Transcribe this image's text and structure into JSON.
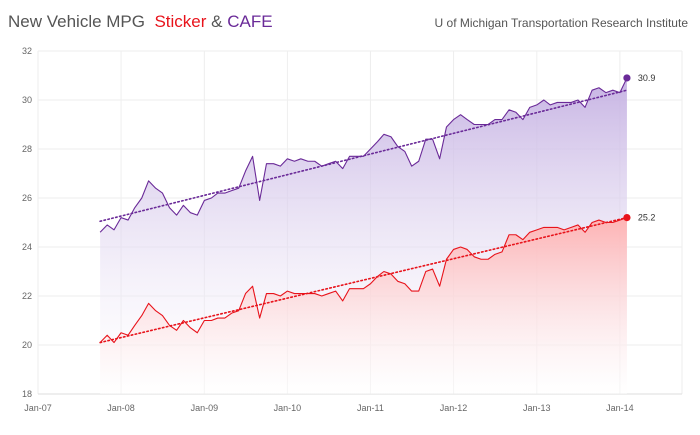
{
  "header": {
    "title_main": "New Vehicle MPG",
    "title_sticker": "Sticker",
    "title_amp": "&",
    "title_cafe": "CAFE",
    "source": "U of Michigan Transportation Research Institute"
  },
  "colors": {
    "sticker": "#e8131b",
    "cafe": "#6a2a98",
    "cafe_fill": "#c9b6e4",
    "sticker_fill": "#ffb7b7",
    "grid": "#eeeeee",
    "axis_text": "#666666"
  },
  "chart_data": {
    "type": "area",
    "title": "New Vehicle MPG Sticker & CAFE",
    "xlabel": "",
    "ylabel": "",
    "ylim": [
      18,
      32
    ],
    "yticks": [
      18,
      20,
      22,
      24,
      26,
      28,
      30,
      32
    ],
    "xlim": [
      "2007-01-01",
      "2014-10-01"
    ],
    "xticks": [
      "Jan-07",
      "Jan-08",
      "Jan-09",
      "Jan-10",
      "Jan-11",
      "Jan-12",
      "Jan-13",
      "Jan-14"
    ],
    "grid": true,
    "series": [
      {
        "name": "CAFE",
        "color": "#6a2a98",
        "end_label": "30.9",
        "trend": [
          [
            "2007-10-01",
            25.05
          ],
          [
            "2014-02-01",
            30.4
          ]
        ],
        "points": [
          [
            "2007-10-01",
            24.6
          ],
          [
            "2007-11-01",
            24.9
          ],
          [
            "2007-12-01",
            24.7
          ],
          [
            "2008-01-01",
            25.2
          ],
          [
            "2008-02-01",
            25.1
          ],
          [
            "2008-03-01",
            25.6
          ],
          [
            "2008-04-01",
            26.0
          ],
          [
            "2008-05-01",
            26.7
          ],
          [
            "2008-06-01",
            26.4
          ],
          [
            "2008-07-01",
            26.2
          ],
          [
            "2008-08-01",
            25.6
          ],
          [
            "2008-09-01",
            25.3
          ],
          [
            "2008-10-01",
            25.7
          ],
          [
            "2008-11-01",
            25.4
          ],
          [
            "2008-12-01",
            25.3
          ],
          [
            "2009-01-01",
            25.9
          ],
          [
            "2009-02-01",
            26.0
          ],
          [
            "2009-03-01",
            26.2
          ],
          [
            "2009-04-01",
            26.2
          ],
          [
            "2009-05-01",
            26.3
          ],
          [
            "2009-06-01",
            26.4
          ],
          [
            "2009-07-01",
            27.1
          ],
          [
            "2009-08-01",
            27.7
          ],
          [
            "2009-09-01",
            25.9
          ],
          [
            "2009-10-01",
            27.4
          ],
          [
            "2009-11-01",
            27.4
          ],
          [
            "2009-12-01",
            27.3
          ],
          [
            "2010-01-01",
            27.6
          ],
          [
            "2010-02-01",
            27.5
          ],
          [
            "2010-03-01",
            27.6
          ],
          [
            "2010-04-01",
            27.5
          ],
          [
            "2010-05-01",
            27.5
          ],
          [
            "2010-06-01",
            27.3
          ],
          [
            "2010-07-01",
            27.4
          ],
          [
            "2010-08-01",
            27.5
          ],
          [
            "2010-09-01",
            27.2
          ],
          [
            "2010-10-01",
            27.7
          ],
          [
            "2010-11-01",
            27.7
          ],
          [
            "2010-12-01",
            27.7
          ],
          [
            "2011-01-01",
            28.0
          ],
          [
            "2011-02-01",
            28.3
          ],
          [
            "2011-03-01",
            28.6
          ],
          [
            "2011-04-01",
            28.5
          ],
          [
            "2011-05-01",
            28.1
          ],
          [
            "2011-06-01",
            27.9
          ],
          [
            "2011-07-01",
            27.3
          ],
          [
            "2011-08-01",
            27.5
          ],
          [
            "2011-09-01",
            28.4
          ],
          [
            "2011-10-01",
            28.4
          ],
          [
            "2011-11-01",
            27.6
          ],
          [
            "2011-12-01",
            28.9
          ],
          [
            "2012-01-01",
            29.2
          ],
          [
            "2012-02-01",
            29.4
          ],
          [
            "2012-03-01",
            29.2
          ],
          [
            "2012-04-01",
            29.0
          ],
          [
            "2012-05-01",
            29.0
          ],
          [
            "2012-06-01",
            29.0
          ],
          [
            "2012-07-01",
            29.2
          ],
          [
            "2012-08-01",
            29.2
          ],
          [
            "2012-09-01",
            29.6
          ],
          [
            "2012-10-01",
            29.5
          ],
          [
            "2012-11-01",
            29.2
          ],
          [
            "2012-12-01",
            29.7
          ],
          [
            "2013-01-01",
            29.8
          ],
          [
            "2013-02-01",
            30.0
          ],
          [
            "2013-03-01",
            29.8
          ],
          [
            "2013-04-01",
            29.9
          ],
          [
            "2013-05-01",
            29.9
          ],
          [
            "2013-06-01",
            29.9
          ],
          [
            "2013-07-01",
            30.0
          ],
          [
            "2013-08-01",
            29.7
          ],
          [
            "2013-09-01",
            30.4
          ],
          [
            "2013-10-01",
            30.5
          ],
          [
            "2013-11-01",
            30.3
          ],
          [
            "2013-12-01",
            30.4
          ],
          [
            "2014-01-01",
            30.3
          ],
          [
            "2014-02-01",
            30.9
          ]
        ]
      },
      {
        "name": "Sticker",
        "color": "#e8131b",
        "end_label": "25.2",
        "trend": [
          [
            "2007-10-01",
            20.1
          ],
          [
            "2014-02-01",
            25.2
          ]
        ],
        "points": [
          [
            "2007-10-01",
            20.1
          ],
          [
            "2007-11-01",
            20.4
          ],
          [
            "2007-12-01",
            20.1
          ],
          [
            "2008-01-01",
            20.5
          ],
          [
            "2008-02-01",
            20.4
          ],
          [
            "2008-03-01",
            20.8
          ],
          [
            "2008-04-01",
            21.2
          ],
          [
            "2008-05-01",
            21.7
          ],
          [
            "2008-06-01",
            21.4
          ],
          [
            "2008-07-01",
            21.2
          ],
          [
            "2008-08-01",
            20.8
          ],
          [
            "2008-09-01",
            20.6
          ],
          [
            "2008-10-01",
            21.0
          ],
          [
            "2008-11-01",
            20.7
          ],
          [
            "2008-12-01",
            20.5
          ],
          [
            "2009-01-01",
            21.0
          ],
          [
            "2009-02-01",
            21.0
          ],
          [
            "2009-03-01",
            21.1
          ],
          [
            "2009-04-01",
            21.1
          ],
          [
            "2009-05-01",
            21.3
          ],
          [
            "2009-06-01",
            21.4
          ],
          [
            "2009-07-01",
            22.1
          ],
          [
            "2009-08-01",
            22.4
          ],
          [
            "2009-09-01",
            21.1
          ],
          [
            "2009-10-01",
            22.1
          ],
          [
            "2009-11-01",
            22.1
          ],
          [
            "2009-12-01",
            22.0
          ],
          [
            "2010-01-01",
            22.2
          ],
          [
            "2010-02-01",
            22.1
          ],
          [
            "2010-03-01",
            22.1
          ],
          [
            "2010-04-01",
            22.1
          ],
          [
            "2010-05-01",
            22.1
          ],
          [
            "2010-06-01",
            22.0
          ],
          [
            "2010-07-01",
            22.1
          ],
          [
            "2010-08-01",
            22.2
          ],
          [
            "2010-09-01",
            21.8
          ],
          [
            "2010-10-01",
            22.3
          ],
          [
            "2010-11-01",
            22.3
          ],
          [
            "2010-12-01",
            22.3
          ],
          [
            "2011-01-01",
            22.5
          ],
          [
            "2011-02-01",
            22.8
          ],
          [
            "2011-03-01",
            23.0
          ],
          [
            "2011-04-01",
            22.9
          ],
          [
            "2011-05-01",
            22.6
          ],
          [
            "2011-06-01",
            22.5
          ],
          [
            "2011-07-01",
            22.2
          ],
          [
            "2011-08-01",
            22.2
          ],
          [
            "2011-09-01",
            23.0
          ],
          [
            "2011-10-01",
            23.1
          ],
          [
            "2011-11-01",
            22.4
          ],
          [
            "2011-12-01",
            23.5
          ],
          [
            "2012-01-01",
            23.9
          ],
          [
            "2012-02-01",
            24.0
          ],
          [
            "2012-03-01",
            23.9
          ],
          [
            "2012-04-01",
            23.6
          ],
          [
            "2012-05-01",
            23.5
          ],
          [
            "2012-06-01",
            23.5
          ],
          [
            "2012-07-01",
            23.7
          ],
          [
            "2012-08-01",
            23.8
          ],
          [
            "2012-09-01",
            24.5
          ],
          [
            "2012-10-01",
            24.5
          ],
          [
            "2012-11-01",
            24.3
          ],
          [
            "2012-12-01",
            24.6
          ],
          [
            "2013-01-01",
            24.7
          ],
          [
            "2013-02-01",
            24.8
          ],
          [
            "2013-03-01",
            24.8
          ],
          [
            "2013-04-01",
            24.8
          ],
          [
            "2013-05-01",
            24.7
          ],
          [
            "2013-06-01",
            24.8
          ],
          [
            "2013-07-01",
            24.9
          ],
          [
            "2013-08-01",
            24.6
          ],
          [
            "2013-09-01",
            25.0
          ],
          [
            "2013-10-01",
            25.1
          ],
          [
            "2013-11-01",
            25.0
          ],
          [
            "2013-12-01",
            25.0
          ],
          [
            "2014-01-01",
            25.1
          ],
          [
            "2014-02-01",
            25.2
          ]
        ]
      }
    ]
  }
}
